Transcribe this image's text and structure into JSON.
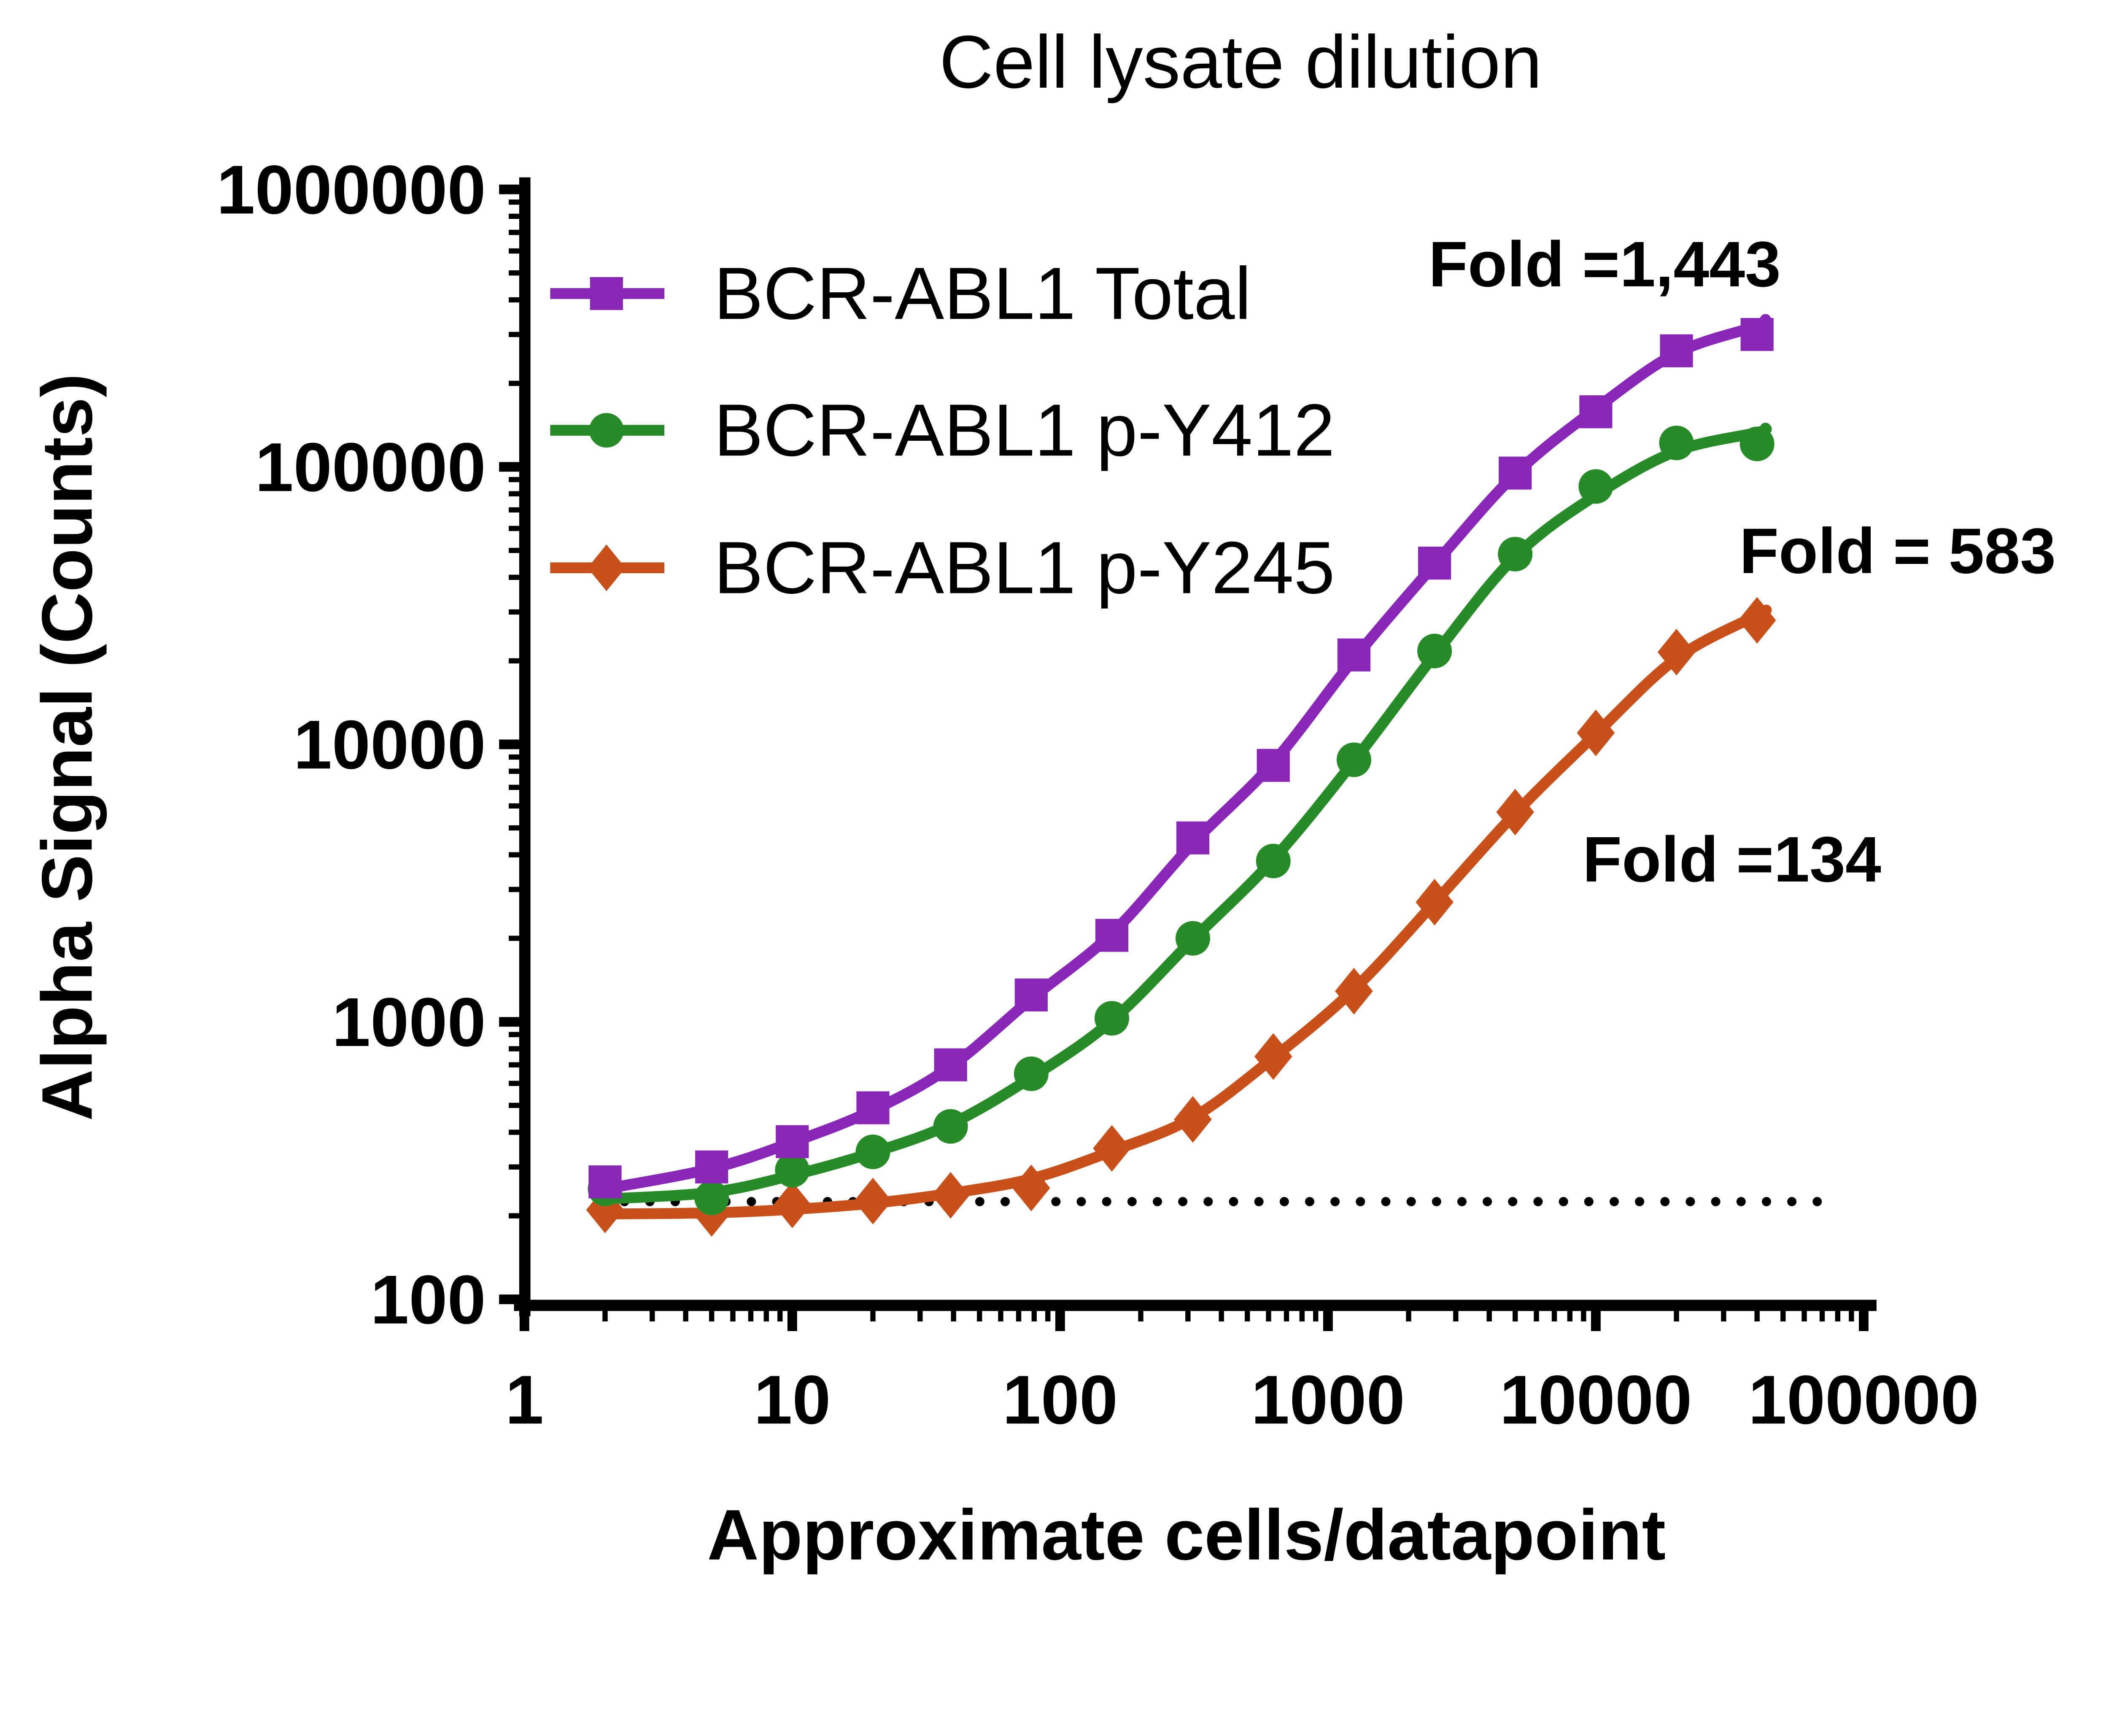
{
  "title": "Cell lysate dilution",
  "x_axis": {
    "label": "Approximate cells/datapoint",
    "scale": "log",
    "min": 1,
    "max": 100000,
    "ticks": [
      {
        "label": "1",
        "value": 1
      },
      {
        "label": "10",
        "value": 10
      },
      {
        "label": "100",
        "value": 100
      },
      {
        "label": "1000",
        "value": 1000
      },
      {
        "label": "10000",
        "value": 10000
      },
      {
        "label": "100000",
        "value": 100000
      }
    ]
  },
  "y_axis": {
    "label": "Alpha Signal (Counts)",
    "scale": "log",
    "min": 100,
    "max": 1000000,
    "ticks": [
      {
        "label": "100",
        "value": 100
      },
      {
        "label": "1000",
        "value": 1000
      },
      {
        "label": "10000",
        "value": 10000
      },
      {
        "label": "100000",
        "value": 100000
      },
      {
        "label": "1000000",
        "value": 1000000
      }
    ]
  },
  "baseline": {
    "value": 225,
    "style": "dotted",
    "color": "#000000",
    "x_start": 1.9,
    "x_end": 78000
  },
  "chart_data": {
    "type": "line",
    "title": "Cell lysate dilution",
    "xlabel": "Approximate cells/datapoint",
    "ylabel": "Alpha Signal (Counts)",
    "xscale": "log",
    "yscale": "log",
    "xlim": [
      1,
      100000
    ],
    "ylim": [
      100,
      1000000
    ],
    "grid": false,
    "legend_position": "top-left-inside",
    "x": [
      2,
      5,
      10,
      20,
      39,
      78,
      156,
      313,
      625,
      1250,
      2500,
      5000,
      10000,
      20000,
      40000
    ],
    "series": [
      {
        "name": "BCR-ABL1 Total",
        "marker": "square",
        "color": "#8928B8",
        "fold": "Fold =1,443",
        "values": [
          265,
          300,
          370,
          490,
          700,
          1250,
          2050,
          4600,
          8400,
          21000,
          45000,
          95000,
          158000,
          262000,
          300000
        ],
        "fit_x": [
          2,
          5,
          10,
          20,
          39,
          78,
          156,
          313,
          625,
          1250,
          2500,
          5000,
          10000,
          20000,
          40000,
          43000
        ],
        "fit_y": [
          250,
          296,
          368,
          480,
          690,
          1210,
          2080,
          4400,
          8600,
          20300,
          44500,
          94000,
          162000,
          257000,
          322000,
          340000
        ]
      },
      {
        "name": "BCR-ABL1 p-Y412",
        "marker": "circle",
        "color": "#278C28",
        "fold": "Fold = 583",
        "values": [
          250,
          232,
          292,
          340,
          420,
          650,
          1030,
          2000,
          3800,
          8800,
          21700,
          48500,
          85000,
          122000,
          121000
        ],
        "fit_x": [
          2,
          5,
          10,
          20,
          39,
          78,
          156,
          313,
          625,
          1250,
          2500,
          5000,
          10000,
          20000,
          40000,
          43000
        ],
        "fit_y": [
          230,
          243,
          280,
          338,
          428,
          630,
          1010,
          1980,
          3850,
          8700,
          21000,
          47500,
          79000,
          114000,
          133000,
          138000
        ]
      },
      {
        "name": "BCR-ABL1 p-Y245",
        "marker": "diamond",
        "color": "#C8511B",
        "fold": "Fold =134",
        "values": [
          210,
          204,
          219,
          226,
          237,
          252,
          350,
          445,
          750,
          1290,
          2700,
          5700,
          11000,
          21500,
          28000
        ],
        "fit_x": [
          2,
          5,
          10,
          20,
          39,
          78,
          156,
          313,
          625,
          1250,
          2500,
          5000,
          10000,
          20000,
          40000,
          43000
        ],
        "fit_y": [
          203,
          205,
          211,
          222,
          241,
          272,
          342,
          452,
          742,
          1310,
          2690,
          5640,
          10900,
          20400,
          29200,
          30400
        ]
      }
    ],
    "baseline_value": 225,
    "annotations": [
      "Fold =1,443",
      "Fold = 583",
      "Fold =134"
    ]
  }
}
